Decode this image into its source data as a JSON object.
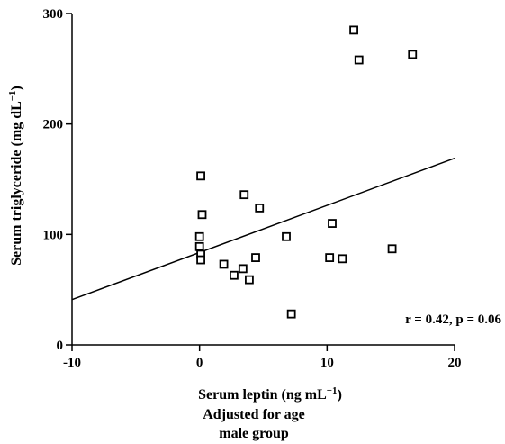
{
  "chart_data": {
    "type": "scatter",
    "x_axis": {
      "label_main": "Serum leptin (ng mL",
      "label_sup": "−1",
      "label_close": ")",
      "range": [
        -10,
        20
      ],
      "ticks": [
        -10,
        0,
        10,
        20
      ],
      "tick_labels": [
        "-10",
        "0",
        "10",
        "20"
      ]
    },
    "y_axis": {
      "label_main": "Serum triglyceride (mg dL",
      "label_sup": "−1",
      "label_close": ")",
      "range": [
        0,
        300
      ],
      "ticks": [
        0,
        100,
        200,
        300
      ],
      "tick_labels": [
        "0",
        "100",
        "200",
        "300"
      ]
    },
    "subtitle_lines": [
      "Adjusted for age",
      "male group"
    ],
    "annotation": "r = 0.42, p = 0.06",
    "points": [
      {
        "x": 0.1,
        "y": 153
      },
      {
        "x": 0.2,
        "y": 118
      },
      {
        "x": 0.0,
        "y": 98
      },
      {
        "x": 0.0,
        "y": 89
      },
      {
        "x": 0.1,
        "y": 82
      },
      {
        "x": 0.1,
        "y": 77
      },
      {
        "x": 1.9,
        "y": 73
      },
      {
        "x": 2.7,
        "y": 63
      },
      {
        "x": 3.4,
        "y": 69
      },
      {
        "x": 3.5,
        "y": 136
      },
      {
        "x": 3.9,
        "y": 59
      },
      {
        "x": 4.4,
        "y": 79
      },
      {
        "x": 4.7,
        "y": 124
      },
      {
        "x": 6.8,
        "y": 98
      },
      {
        "x": 7.2,
        "y": 28
      },
      {
        "x": 10.2,
        "y": 79
      },
      {
        "x": 10.4,
        "y": 110
      },
      {
        "x": 11.2,
        "y": 78
      },
      {
        "x": 12.1,
        "y": 285
      },
      {
        "x": 12.5,
        "y": 258
      },
      {
        "x": 15.1,
        "y": 87
      },
      {
        "x": 16.7,
        "y": 263
      }
    ],
    "regression_line": {
      "x": [
        -10,
        20
      ],
      "y": [
        41,
        169
      ]
    },
    "grid": false
  }
}
